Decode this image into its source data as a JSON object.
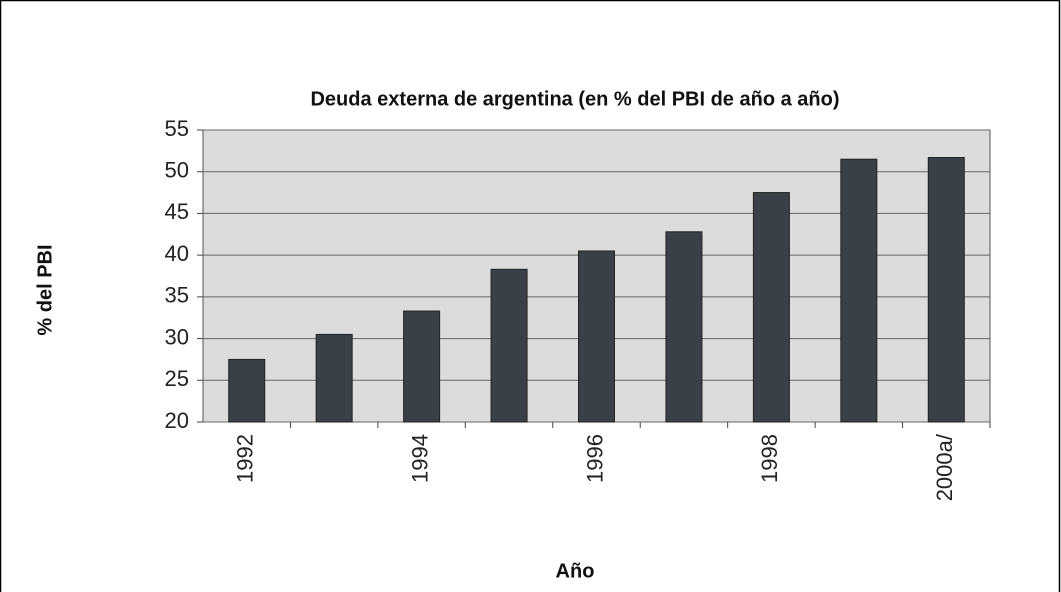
{
  "chart_data": {
    "type": "bar",
    "title": "Deuda externa de argentina (en % del PBI de año a año)",
    "x_label": "Año",
    "y_label": "% del PBI",
    "categories": [
      "1992",
      null,
      "1994",
      null,
      "1996",
      null,
      "1998",
      null,
      "2000a/"
    ],
    "values": [
      27.5,
      30.5,
      33.3,
      38.3,
      40.5,
      42.8,
      47.5,
      51.5,
      51.7
    ],
    "color": "#3b4046",
    "ylim": [
      20,
      55
    ],
    "yticks": [
      20,
      25,
      30,
      35,
      40,
      45,
      50,
      55
    ],
    "grid": true
  }
}
